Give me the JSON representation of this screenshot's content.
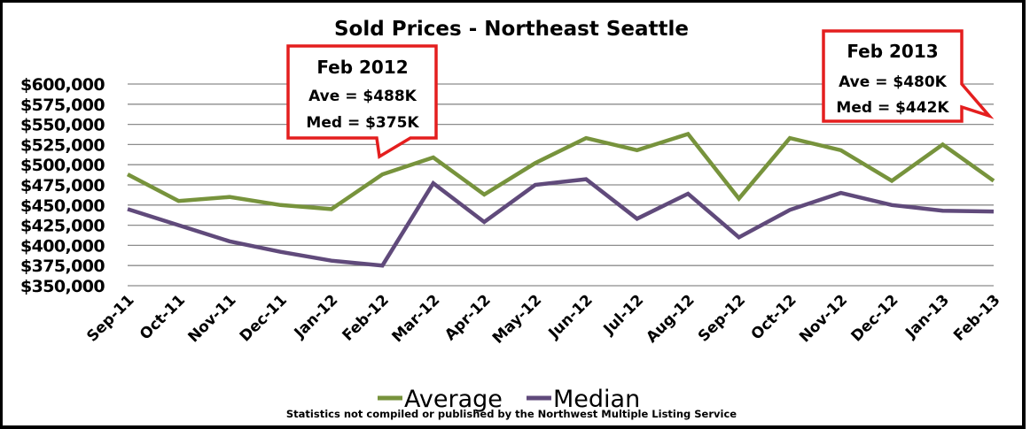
{
  "chart_data": {
    "type": "line",
    "title": "Sold Prices - Northeast Seattle",
    "xlabel": "",
    "ylabel": "",
    "categories": [
      "Sep-11",
      "Oct-11",
      "Nov-11",
      "Dec-11",
      "Jan-12",
      "Feb-12",
      "Mar-12",
      "Apr-12",
      "May-12",
      "Jun-12",
      "Jul-12",
      "Aug-12",
      "Sep-12",
      "Oct-12",
      "Nov-12",
      "Dec-12",
      "Jan-13",
      "Feb-13"
    ],
    "series": [
      {
        "name": "Average",
        "color": "#77933C",
        "values": [
          488000,
          455000,
          460000,
          450000,
          445000,
          488000,
          509000,
          463000,
          502000,
          533000,
          518000,
          538000,
          458000,
          533000,
          518000,
          480000,
          525000,
          480000
        ]
      },
      {
        "name": "Median",
        "color": "#604A7B",
        "values": [
          445000,
          425000,
          405000,
          392000,
          381000,
          375000,
          477000,
          429000,
          475000,
          482000,
          433000,
          464000,
          410000,
          444000,
          465000,
          450000,
          443000,
          442000
        ]
      }
    ],
    "ylim": [
      350000,
      600000
    ],
    "yticks": [
      600000,
      575000,
      550000,
      525000,
      500000,
      475000,
      450000,
      425000,
      400000,
      375000,
      350000
    ],
    "ytick_labels": [
      "$600,000",
      "$575,000",
      "$550,000",
      "$525,000",
      "$500,000",
      "$475,000",
      "$450,000",
      "$425,000",
      "$400,000",
      "$375,000",
      "$350,000"
    ],
    "grid": true,
    "legend_position": "bottom",
    "annotations": [
      {
        "title": "Feb 2012",
        "lines": [
          "Ave = $488K",
          "Med = $375K"
        ],
        "points_to": "Feb-12",
        "border_color": "#E41E1E"
      },
      {
        "title": "Feb 2013",
        "lines": [
          "Ave = $480K",
          "Med = $442K"
        ],
        "points_to": "Feb-13",
        "border_color": "#E41E1E"
      }
    ],
    "footnote": "Statistics  not compiled or published by the Northwest Multiple Listing Service"
  }
}
